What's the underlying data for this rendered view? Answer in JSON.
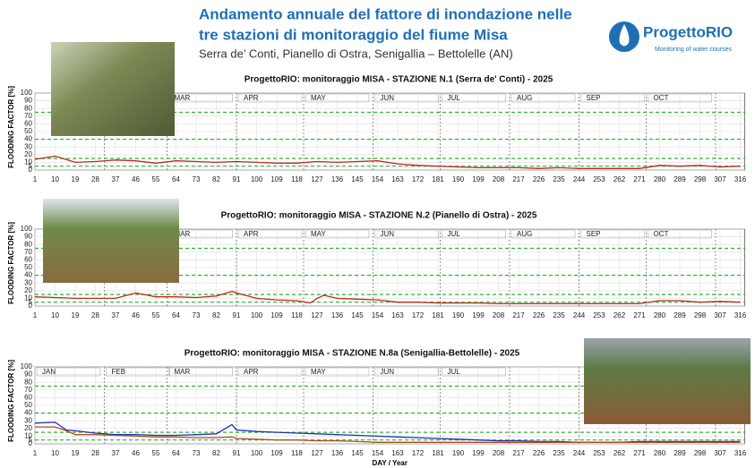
{
  "header": {
    "title_line1": "Andamento annuale del fattore di inondazione nelle",
    "title_line2": "tre stazioni di monitoraggio del fiume Misa",
    "subtitle": "Serra de’ Conti, Pianello di Ostra, Senigallia – Bettolelle (AN)"
  },
  "logo": {
    "name": "ProgettoRIO",
    "tagline": "Monitoring of water courses"
  },
  "chart_data": [
    {
      "type": "line",
      "title": "ProgettoRIO: monitoraggio MISA - STAZIONE N.1 (Serra de' Conti) - 2025",
      "y_label": "FLOODING FACTOR [%]",
      "xlim": [
        1,
        318
      ],
      "ylim": [
        0,
        100
      ],
      "xticks": [
        1,
        10,
        19,
        28,
        37,
        46,
        55,
        64,
        73,
        82,
        91,
        100,
        109,
        118,
        127,
        136,
        145,
        154,
        163,
        172,
        181,
        190,
        199,
        208,
        217,
        226,
        235,
        244,
        253,
        262,
        271,
        280,
        289,
        298,
        307,
        316
      ],
      "yticks": [
        0,
        5,
        10,
        20,
        30,
        40,
        50,
        60,
        70,
        80,
        90,
        100
      ],
      "thresholds": [
        5,
        15,
        40,
        75
      ],
      "threshold_color": "#2fb52f",
      "month_lines": [
        32,
        60,
        91,
        121,
        152,
        182,
        213,
        244,
        274,
        305
      ],
      "month_labels": [
        "MAR",
        "APR",
        "MAY",
        "JUN",
        "JUL",
        "AUG",
        "SEP",
        "OCT"
      ],
      "month_starts": [
        60,
        91,
        121,
        152,
        182,
        213,
        244,
        274
      ],
      "x": [
        1,
        10,
        19,
        28,
        37,
        46,
        55,
        64,
        73,
        82,
        91,
        100,
        109,
        118,
        127,
        136,
        145,
        154,
        163,
        172,
        181,
        190,
        199,
        208,
        217,
        226,
        235,
        244,
        253,
        262,
        271,
        280,
        289,
        298,
        307,
        316
      ],
      "series": [
        {
          "color": "#c0281e",
          "values": [
            14,
            18,
            10,
            11,
            13,
            12,
            9,
            12,
            11,
            10,
            11,
            10,
            9,
            9,
            11,
            10,
            11,
            12,
            8,
            6,
            5,
            4,
            3,
            3,
            3,
            2,
            3,
            2,
            2,
            2,
            2,
            6,
            5,
            6,
            4,
            5
          ]
        }
      ]
    },
    {
      "type": "line",
      "title": "ProgettoRIO: monitoraggio MISA - STAZIONE N.2 (Pianello di Ostra) - 2025",
      "y_label": "FLOODING FACTOR [%]",
      "xlim": [
        1,
        318
      ],
      "ylim": [
        0,
        100
      ],
      "xticks": [
        1,
        10,
        19,
        28,
        37,
        46,
        55,
        64,
        73,
        82,
        91,
        100,
        109,
        118,
        127,
        136,
        145,
        154,
        163,
        172,
        181,
        190,
        199,
        208,
        217,
        226,
        235,
        244,
        253,
        262,
        271,
        280,
        289,
        298,
        307,
        316
      ],
      "yticks": [
        0,
        5,
        10,
        20,
        30,
        40,
        50,
        60,
        70,
        80,
        90,
        100
      ],
      "thresholds": [
        5,
        15,
        40,
        75
      ],
      "threshold_color": "#2fb52f",
      "month_lines": [
        32,
        60,
        91,
        121,
        152,
        182,
        213,
        244,
        274,
        305
      ],
      "month_labels": [
        "MAR",
        "APR",
        "MAY",
        "JUN",
        "JUL",
        "AUG",
        "SEP",
        "OCT"
      ],
      "month_starts": [
        60,
        91,
        121,
        152,
        182,
        213,
        244,
        274
      ],
      "x": [
        1,
        10,
        19,
        28,
        37,
        46,
        55,
        64,
        73,
        82,
        89,
        91,
        100,
        109,
        118,
        124,
        127,
        130,
        136,
        145,
        154,
        163,
        172,
        181,
        190,
        199,
        208,
        217,
        226,
        235,
        244,
        253,
        262,
        271,
        280,
        289,
        298,
        307,
        316
      ],
      "series": [
        {
          "color": "#c0281e",
          "values": [
            12,
            11,
            10,
            10,
            10,
            17,
            12,
            12,
            11,
            13,
            19,
            17,
            10,
            8,
            7,
            4,
            10,
            14,
            10,
            9,
            8,
            5,
            5,
            4,
            4,
            4,
            3,
            3,
            3,
            3,
            3,
            3,
            3,
            3,
            7,
            7,
            5,
            6,
            5
          ]
        }
      ]
    },
    {
      "type": "line",
      "title": "ProgettoRIO: monitoraggio MISA - STAZIONE N.8a (Senigallia-Bettolelle) - 2025",
      "y_label": "FLOODING FACTOR [%]",
      "x_label": "DAY / Year",
      "xlim": [
        1,
        318
      ],
      "ylim": [
        0,
        100
      ],
      "xticks": [
        1,
        10,
        19,
        28,
        37,
        46,
        55,
        64,
        73,
        82,
        91,
        100,
        109,
        118,
        127,
        136,
        145,
        154,
        163,
        172,
        181,
        190,
        199,
        208,
        217,
        226,
        235,
        244,
        253,
        262,
        271,
        280,
        289,
        298,
        307,
        316
      ],
      "yticks": [
        0,
        5,
        10,
        20,
        30,
        40,
        50,
        60,
        70,
        80,
        90,
        100
      ],
      "thresholds": [
        5,
        15,
        40,
        75
      ],
      "threshold_color": "#2fb52f",
      "month_lines": [
        32,
        60,
        91,
        121,
        152,
        182,
        213,
        244,
        274,
        305
      ],
      "month_labels": [
        "JAN",
        "FEB",
        "MAR",
        "APR",
        "MAY",
        "JUN",
        "JUL"
      ],
      "month_starts": [
        1,
        32,
        60,
        91,
        121,
        152,
        182
      ],
      "x": [
        1,
        10,
        15,
        19,
        28,
        37,
        46,
        55,
        64,
        73,
        82,
        89,
        91,
        100,
        109,
        118,
        127,
        136,
        145,
        154,
        163,
        172,
        181,
        190,
        199,
        208,
        217,
        226,
        235,
        244,
        253,
        262,
        271,
        280,
        289,
        298,
        307,
        316
      ],
      "series": [
        {
          "color": "#1f2fbf",
          "values": [
            27,
            28,
            18,
            17,
            14,
            12,
            12,
            11,
            11,
            12,
            13,
            25,
            18,
            16,
            15,
            14,
            13,
            12,
            11,
            10,
            9,
            8,
            7,
            6,
            5,
            4,
            4,
            3,
            3,
            2,
            2,
            2,
            3,
            3,
            3,
            3,
            3,
            3
          ]
        },
        {
          "color": "#b0501e",
          "values": [
            22,
            22,
            17,
            12,
            12,
            11,
            10,
            9,
            9,
            8,
            8,
            9,
            7,
            6,
            5,
            5,
            4,
            4,
            3,
            2,
            2,
            2,
            2,
            2,
            2,
            2,
            2,
            2,
            2,
            2,
            2,
            2,
            2,
            2,
            2,
            2,
            2,
            2
          ]
        }
      ]
    }
  ]
}
